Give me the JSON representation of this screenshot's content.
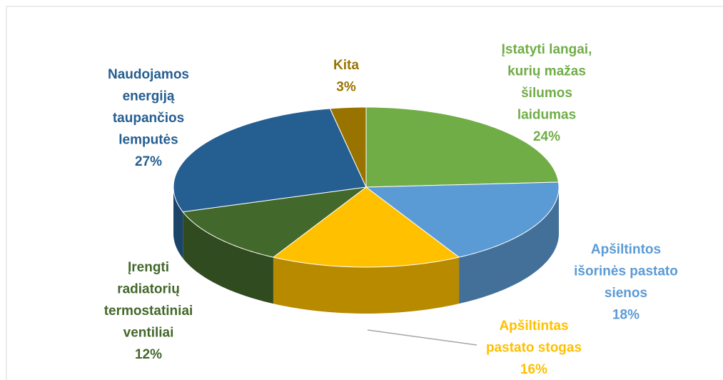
{
  "chart_data": {
    "type": "pie",
    "categories": [
      "Įstatyti langai,\nkurių mažas\nšilumos\nlaidumas",
      "Apšiltintos\nišorinės pastato\nsienos",
      "Apšiltintas\npastato stogas",
      "Įrengti\nradiatorių\ntermostatiniai\nventiliai",
      "Naudojamos\nenergiją\ntaupančios\nlemputės",
      "Kita"
    ],
    "values": [
      24,
      18,
      16,
      12,
      27,
      3
    ],
    "value_labels": [
      "24%",
      "18%",
      "16%",
      "12%",
      "27%",
      "3%"
    ],
    "colors": [
      "#70ad47",
      "#5b9bd5",
      "#ffc000",
      "#43682b",
      "#255e91",
      "#997300"
    ]
  }
}
